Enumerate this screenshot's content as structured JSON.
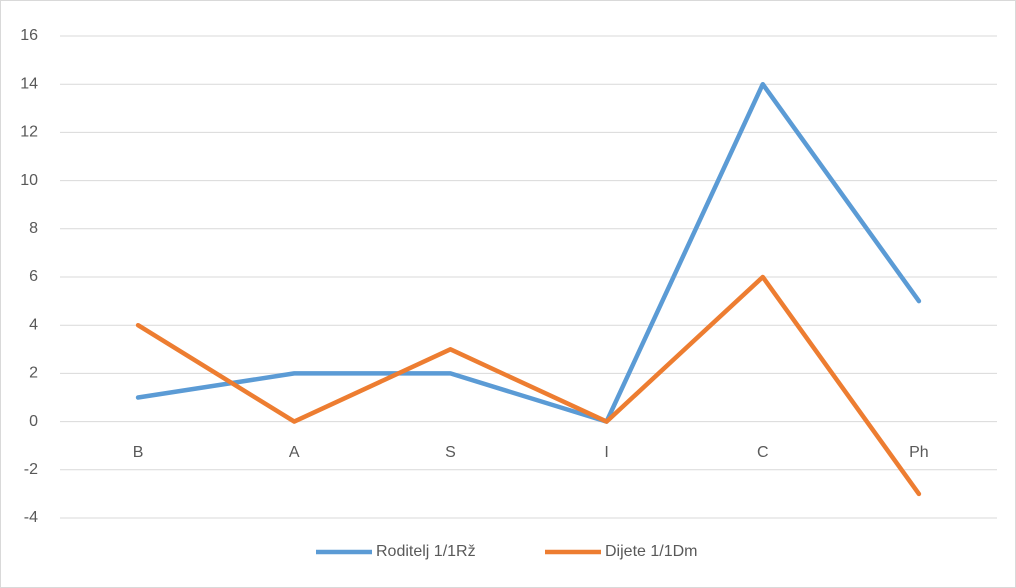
{
  "chart_data": {
    "type": "line",
    "categories": [
      "B",
      "A",
      "S",
      "I",
      "C",
      "Ph"
    ],
    "series": [
      {
        "name": "Roditelj 1/1Rž",
        "color": "#5b9bd5",
        "values": [
          1,
          2,
          2,
          0,
          14,
          5
        ]
      },
      {
        "name": "Dijete 1/1Dm",
        "color": "#ed7d31",
        "values": [
          4,
          0,
          3,
          0,
          6,
          -3
        ]
      }
    ],
    "ylim": [
      -4,
      16
    ],
    "yticks": [
      -4,
      -2,
      0,
      2,
      4,
      6,
      8,
      10,
      12,
      14,
      16
    ],
    "grid": true,
    "legend": "bottom"
  }
}
